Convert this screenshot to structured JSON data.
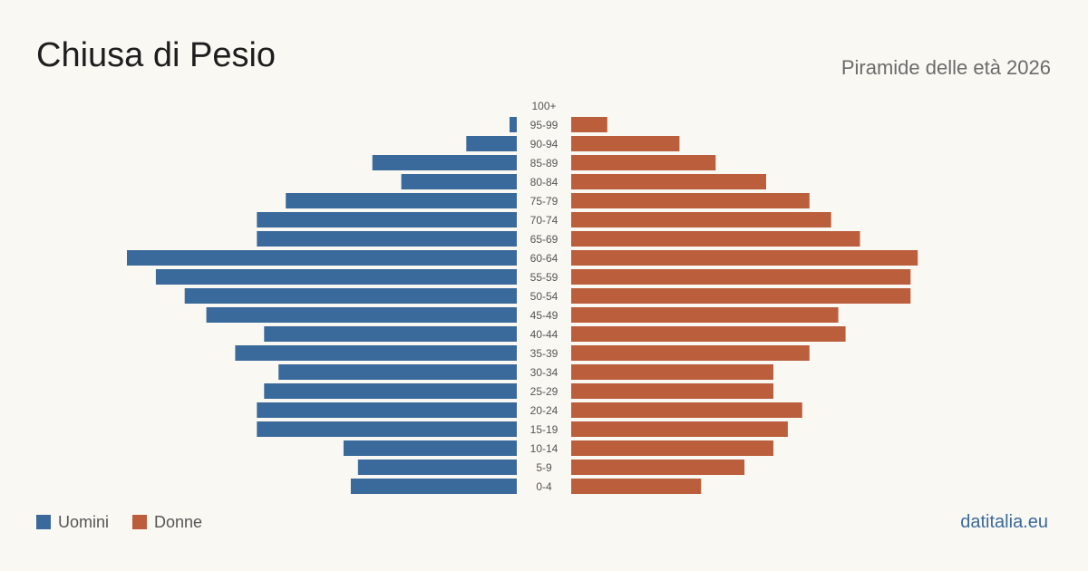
{
  "header": {
    "title": "Chiusa di Pesio",
    "subtitle": "Piramide delle età 2026"
  },
  "colors": {
    "men": "#3a6a9b",
    "women": "#bb5e3c",
    "label": "#555555",
    "brand": "#3a6a9b"
  },
  "legend": {
    "men_label": "Uomini",
    "women_label": "Donne"
  },
  "brand": {
    "text": "datitalia.eu"
  },
  "chart_data": {
    "type": "bar",
    "orientation": "horizontal-pyramid",
    "categories": [
      "100+",
      "95-99",
      "90-94",
      "85-89",
      "80-84",
      "75-79",
      "70-74",
      "65-69",
      "60-64",
      "55-59",
      "50-54",
      "45-49",
      "40-44",
      "35-39",
      "30-34",
      "25-29",
      "20-24",
      "15-19",
      "10-14",
      "5-9",
      "0-4"
    ],
    "series": [
      {
        "name": "Uomini",
        "values": [
          0,
          1,
          7,
          20,
          16,
          32,
          36,
          36,
          54,
          50,
          46,
          43,
          35,
          39,
          33,
          35,
          36,
          36,
          24,
          22,
          23
        ]
      },
      {
        "name": "Donne",
        "values": [
          0,
          5,
          15,
          20,
          27,
          33,
          36,
          40,
          48,
          47,
          47,
          37,
          38,
          33,
          28,
          28,
          32,
          30,
          28,
          24,
          18
        ]
      }
    ],
    "max": 54,
    "grid": false,
    "legend_position": "bottom-left"
  }
}
